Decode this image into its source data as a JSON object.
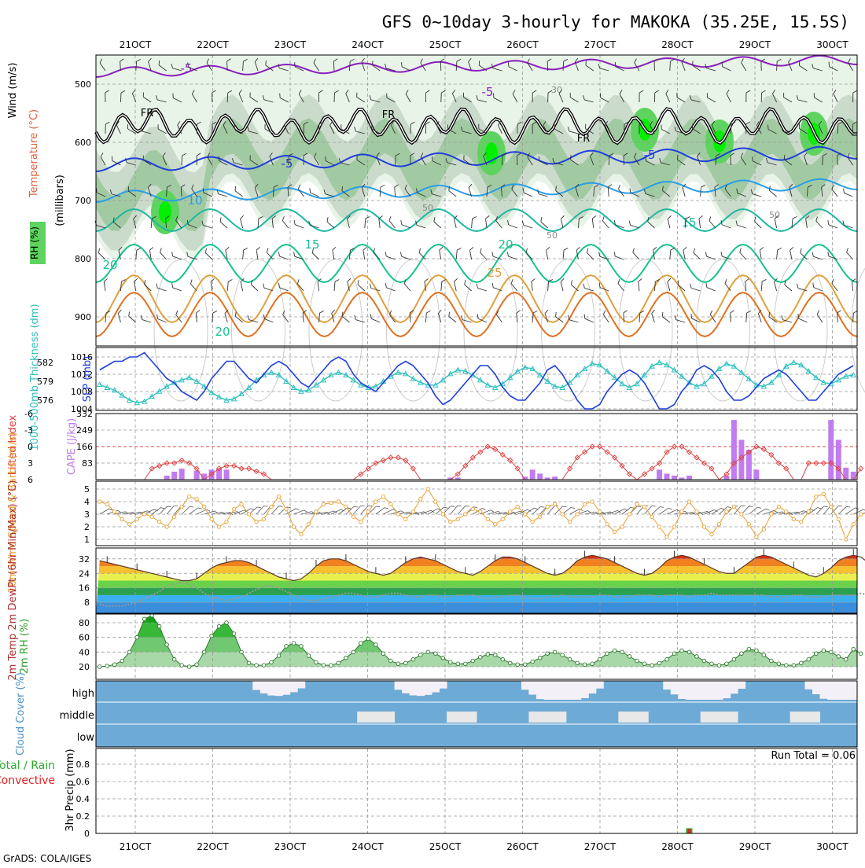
{
  "title": "GFS 0~10day 3-hourly for MAKOKA (35.25E, 15.5S)",
  "footer": "GrADS: COLA/IGES",
  "colors": {
    "rh1": "#e8f4e8",
    "rh2": "#c8d8c8",
    "rh3": "#9dc89d",
    "rh4": "#5fd35f",
    "rh5": "#00f000",
    "slp": "#1f3fdc",
    "thickness": "#30c0c0",
    "lifted": "#e04040",
    "cape": "#c07cf0",
    "wind": "#e8a030",
    "barb": "#555555",
    "rh2m": "#2e9e2e",
    "cloud": "#6eaad6",
    "cloudClear": "#e8e8e8",
    "precipTotal": "#2ea82e",
    "precipConv": "#e02020",
    "freezing": "#000000"
  },
  "chart_data": {
    "type": "meteogram",
    "dates": [
      "21OCT",
      "22OCT",
      "23OCT",
      "24OCT",
      "25OCT",
      "26OCT",
      "27OCT",
      "28OCT",
      "29OCT",
      "30OCT"
    ],
    "panels": {
      "upper": {
        "ylabel_wind": "Wind (m/s)",
        "ylabel_temp": "Temperature (°C)",
        "ylabel_rh": "RH (%)",
        "ylabel_units": "(millibars)",
        "yticks": [
          "500",
          "600",
          "700",
          "800",
          "900"
        ],
        "isotherm_labels": [
          "-5",
          "-5",
          "-5",
          "-5",
          "10",
          "15",
          "15",
          "20",
          "20",
          "20",
          "25"
        ],
        "rh_labels": [
          "30",
          "50",
          "50",
          "50"
        ],
        "freezing_labels": [
          "FR",
          "FR",
          "FR"
        ]
      },
      "slp_thickness": {
        "ylabel_left": "1000-500mb Thickness (dm)",
        "ylabel_right": "SLP (mb)",
        "thickness_ticks": [
          "582",
          "579",
          "576"
        ],
        "slp_ticks": [
          "1016",
          "1012",
          "1008",
          "1004"
        ],
        "slp": [
          1013,
          1014,
          1015,
          1015,
          1016,
          1016,
          1017,
          1015,
          1013,
          1011,
          1010,
          1008,
          1007,
          1006,
          1008,
          1011,
          1013,
          1015,
          1015,
          1013,
          1011,
          1010,
          1012,
          1014,
          1015,
          1014,
          1012,
          1010,
          1009,
          1011,
          1013,
          1015,
          1016,
          1015,
          1012,
          1010,
          1009,
          1008,
          1010,
          1012,
          1014,
          1015,
          1014,
          1012,
          1010,
          1007,
          1005,
          1006,
          1008,
          1010,
          1012,
          1014,
          1014,
          1012,
          1009,
          1007,
          1006,
          1006,
          1008,
          1010,
          1013,
          1014,
          1012,
          1009,
          1006,
          1004,
          1004,
          1005,
          1008,
          1010,
          1012,
          1013,
          1012,
          1010,
          1007,
          1004,
          1004,
          1005,
          1008,
          1010,
          1013,
          1014,
          1013,
          1011,
          1008,
          1006,
          1006,
          1007,
          1009,
          1011,
          1012,
          1013,
          1012,
          1010,
          1008,
          1006,
          1006,
          1008,
          1010,
          1012,
          1013,
          1014
        ],
        "thickness": [
          578.5,
          578.0,
          577.6,
          576.8,
          576.0,
          575.6,
          575.8,
          576.6,
          577.4,
          578.2,
          578.8,
          579.2,
          579.6,
          579.0,
          578.2,
          577.2,
          576.5,
          576.0,
          576.2,
          577.0,
          578.0,
          579.2,
          580.0,
          580.4,
          580.0,
          579.0,
          578.0,
          577.4,
          577.6,
          578.4,
          579.2,
          580.0,
          580.4,
          580.0,
          579.2,
          578.4,
          578.0,
          578.2,
          579.0,
          579.8,
          580.4,
          580.2,
          579.4,
          578.8,
          578.4,
          578.4,
          579.2,
          580.2,
          580.8,
          580.6,
          580.0,
          579.2,
          578.4,
          578.0,
          578.6,
          579.6,
          580.6,
          581.2,
          581.0,
          580.0,
          579.0,
          578.2,
          578.0,
          578.8,
          580.0,
          581.0,
          581.8,
          581.6,
          580.6,
          579.6,
          578.6,
          578.0,
          578.6,
          580.0,
          581.4,
          582.0,
          581.6,
          580.8,
          579.8,
          578.8,
          578.2,
          578.6,
          579.8,
          581.0,
          581.8,
          581.4,
          580.4,
          579.4,
          578.4,
          578.2,
          578.8,
          580.0,
          581.4,
          582.0,
          581.6,
          580.6,
          579.6,
          578.8,
          578.6,
          579.2,
          579.8,
          580.0
        ]
      },
      "lifted_cape": {
        "ylabel_left": "Lifted Index",
        "ylabel_right": "CAPE (J/kg)",
        "li_ticks": [
          "-6",
          "-3",
          "0",
          "3",
          "6"
        ],
        "cape_ticks": [
          "332",
          "249",
          "166",
          "83"
        ],
        "lifted_index": [
          6,
          6,
          6,
          6,
          6,
          6,
          6,
          4,
          3.5,
          3,
          3,
          2.5,
          3,
          4,
          6,
          5,
          4,
          3.5,
          3.5,
          4,
          4,
          4.5,
          5,
          6,
          6,
          6,
          6,
          6,
          6,
          6,
          6,
          6,
          6,
          6,
          6,
          5,
          4,
          3,
          2.5,
          2,
          2,
          2.5,
          4,
          6,
          6,
          6,
          6,
          6,
          5,
          3.5,
          2,
          1,
          0,
          0.5,
          1.5,
          2.5,
          4,
          6,
          6,
          6,
          6,
          6,
          6,
          4,
          2,
          1,
          0,
          0,
          1,
          2,
          3.5,
          5,
          6,
          5,
          4,
          3,
          1,
          0,
          0,
          1,
          2,
          3,
          4,
          6,
          5,
          3,
          2,
          1,
          0,
          0.5,
          1.5,
          3,
          4,
          6,
          6,
          3,
          3,
          3,
          3,
          4,
          6,
          6,
          4
        ],
        "cape": [
          0,
          0,
          0,
          0,
          0,
          0,
          0,
          0,
          0,
          20,
          40,
          55,
          0,
          45,
          30,
          50,
          55,
          50,
          0,
          0,
          0,
          0,
          0,
          0,
          0,
          0,
          0,
          0,
          0,
          0,
          0,
          0,
          0,
          0,
          0,
          0,
          0,
          0,
          0,
          0,
          0,
          0,
          0,
          0,
          0,
          0,
          0,
          10,
          10,
          0,
          0,
          0,
          0,
          0,
          0,
          0,
          0,
          15,
          50,
          30,
          10,
          15,
          0,
          0,
          0,
          0,
          0,
          0,
          0,
          0,
          0,
          0,
          0,
          0,
          0,
          50,
          30,
          20,
          10,
          20,
          0,
          0,
          0,
          0,
          20,
          300,
          200,
          150,
          50,
          0,
          0,
          0,
          0,
          0,
          0,
          0,
          0,
          0,
          300,
          200,
          60,
          40,
          0
        ]
      },
      "wind10m": {
        "ylabel": "10m Wind Speed & Barbs (m/s)",
        "yticks": [
          "5",
          "4",
          "3",
          "2",
          "1"
        ],
        "speed": [
          4.0,
          3.8,
          3.2,
          2.6,
          2.2,
          2.6,
          3.0,
          2.8,
          2.4,
          2.0,
          2.8,
          3.6,
          4.4,
          4.2,
          3.6,
          2.6,
          2.0,
          2.4,
          3.4,
          3.8,
          3.0,
          2.4,
          2.6,
          3.6,
          4.4,
          3.4,
          2.0,
          1.4,
          2.2,
          3.2,
          3.8,
          3.9,
          4.0,
          3.6,
          2.8,
          2.4,
          3.2,
          4.0,
          4.4,
          3.8,
          3.0,
          2.6,
          3.2,
          4.2,
          5.0,
          4.0,
          3.0,
          2.4,
          2.6,
          3.0,
          3.4,
          3.2,
          2.6,
          2.2,
          2.6,
          3.2,
          3.6,
          3.0,
          2.4,
          2.8,
          3.6,
          3.8,
          3.0,
          2.4,
          3.0,
          3.8,
          4.0,
          3.2,
          2.2,
          1.6,
          2.0,
          3.0,
          3.8,
          3.6,
          2.8,
          2.0,
          1.2,
          2.0,
          3.2,
          4.0,
          3.2,
          2.0,
          1.4,
          2.2,
          3.2,
          3.6,
          3.0,
          2.2,
          1.2,
          1.8,
          3.0,
          3.6,
          3.2,
          2.6,
          2.4,
          3.2,
          4.4,
          4.6,
          3.6,
          2.6,
          1.0,
          2.2,
          3.0
        ]
      },
      "temp2m": {
        "ylabel": "2m Temp 2m DewPt (6hr Min/Max) (°C)",
        "yticks": [
          "32",
          "24",
          "16",
          "8"
        ],
        "temp": [
          31,
          30,
          29,
          28,
          27,
          26,
          25,
          24,
          23,
          22,
          21,
          20,
          20,
          21,
          24,
          27,
          29,
          30,
          31,
          31,
          30,
          28,
          26,
          24,
          22,
          21,
          20,
          21,
          24,
          28,
          31,
          32,
          32,
          31,
          29,
          27,
          25,
          24,
          23,
          24,
          27,
          30,
          32,
          33,
          32,
          31,
          29,
          27,
          25,
          24,
          23,
          25,
          28,
          31,
          33,
          33,
          32,
          30,
          28,
          26,
          24,
          23,
          24,
          27,
          31,
          33,
          34,
          33,
          32,
          30,
          28,
          26,
          24,
          23,
          24,
          27,
          31,
          33,
          34,
          33,
          31,
          29,
          27,
          25,
          24,
          24,
          27,
          30,
          33,
          34,
          33,
          31,
          29,
          27,
          25,
          23,
          22,
          24,
          27,
          31,
          33,
          34,
          33,
          30,
          27,
          26,
          25,
          27
        ],
        "dewpt": [
          7,
          6,
          6,
          6,
          7,
          8,
          10,
          12,
          14,
          17,
          18,
          19,
          18,
          16,
          13,
          11,
          10,
          9,
          10,
          11,
          13,
          15,
          17,
          17,
          16,
          14,
          12,
          10,
          9,
          9,
          10,
          11,
          12,
          13,
          13,
          12,
          11,
          11,
          12,
          13,
          13,
          12,
          11,
          11,
          12,
          12,
          11,
          11,
          12,
          12,
          12,
          11,
          10,
          11,
          11,
          12,
          12,
          11,
          10,
          10,
          11,
          11,
          12,
          11,
          11,
          11,
          11,
          12,
          12,
          11,
          11,
          11,
          12,
          12,
          12,
          11,
          12,
          12,
          12,
          11,
          12,
          12,
          13,
          12,
          12,
          12,
          12,
          12,
          12,
          12,
          11,
          11,
          11,
          12,
          12,
          11,
          11,
          11,
          12,
          12,
          12,
          12,
          13,
          12
        ]
      },
      "rh2m": {
        "ylabel": "2m RH (%)",
        "yticks": [
          "80",
          "60",
          "40",
          "20"
        ],
        "rh": [
          20,
          21,
          23,
          28,
          40,
          60,
          85,
          90,
          75,
          50,
          30,
          22,
          20,
          23,
          40,
          62,
          75,
          80,
          65,
          40,
          25,
          22,
          22,
          26,
          35,
          48,
          52,
          48,
          35,
          26,
          22,
          22,
          25,
          32,
          40,
          52,
          58,
          50,
          38,
          28,
          24,
          25,
          30,
          36,
          40,
          38,
          32,
          26,
          24,
          24,
          28,
          33,
          37,
          36,
          30,
          25,
          23,
          23,
          27,
          32,
          38,
          40,
          36,
          30,
          25,
          23,
          24,
          30,
          38,
          42,
          40,
          34,
          28,
          24,
          22,
          25,
          30,
          38,
          42,
          40,
          34,
          28,
          24,
          22,
          24,
          30,
          38,
          44,
          42,
          36,
          28,
          24,
          22,
          22,
          25,
          30,
          38,
          42,
          40,
          34,
          30,
          44,
          38
        ]
      },
      "cloud": {
        "ylabel": "Cloud Cover (%)",
        "levels": [
          "high",
          "middle",
          "low"
        ]
      },
      "precip": {
        "ylabel": "Total / Rain Convective 3hr Precip (mm)",
        "yticks": [
          "0.8",
          "0.6",
          "0.4",
          "0.2",
          "0"
        ],
        "run_total": "Run Total = 0.06",
        "total": [
          0,
          0,
          0,
          0,
          0,
          0,
          0,
          0,
          0,
          0,
          0,
          0,
          0,
          0,
          0,
          0,
          0,
          0,
          0,
          0,
          0,
          0,
          0,
          0,
          0,
          0,
          0,
          0,
          0,
          0,
          0,
          0,
          0,
          0,
          0,
          0,
          0,
          0,
          0,
          0,
          0,
          0,
          0,
          0,
          0,
          0,
          0,
          0,
          0,
          0,
          0,
          0,
          0,
          0,
          0,
          0,
          0,
          0,
          0,
          0,
          0,
          0,
          0,
          0,
          0,
          0,
          0,
          0,
          0,
          0,
          0,
          0,
          0,
          0,
          0,
          0,
          0,
          0,
          0,
          0.06,
          0,
          0,
          0,
          0,
          0,
          0,
          0,
          0,
          0,
          0,
          0,
          0,
          0,
          0,
          0,
          0,
          0,
          0,
          0,
          0,
          0,
          0,
          0
        ],
        "convective": [
          0,
          0,
          0,
          0,
          0,
          0,
          0,
          0,
          0,
          0,
          0,
          0,
          0,
          0,
          0,
          0,
          0,
          0,
          0,
          0,
          0,
          0,
          0,
          0,
          0,
          0,
          0,
          0,
          0,
          0,
          0,
          0,
          0,
          0,
          0,
          0,
          0,
          0,
          0,
          0,
          0,
          0,
          0,
          0,
          0,
          0,
          0,
          0,
          0,
          0,
          0,
          0,
          0,
          0,
          0,
          0,
          0,
          0,
          0,
          0,
          0,
          0,
          0,
          0,
          0,
          0,
          0,
          0,
          0,
          0,
          0,
          0,
          0,
          0,
          0,
          0,
          0,
          0,
          0,
          0.05,
          0,
          0,
          0,
          0,
          0,
          0,
          0,
          0,
          0,
          0,
          0,
          0,
          0,
          0,
          0,
          0,
          0,
          0,
          0,
          0,
          0,
          0,
          0
        ]
      }
    }
  }
}
